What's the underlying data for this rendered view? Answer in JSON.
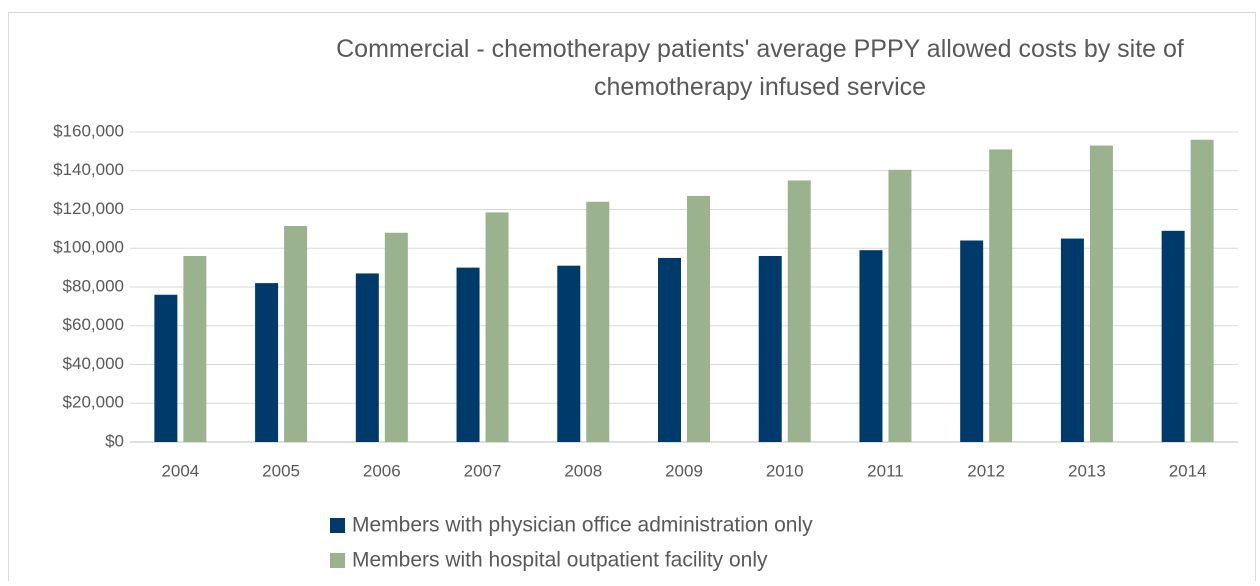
{
  "chart_data": {
    "type": "bar",
    "title": "Commercial - chemotherapy patients' average PPPY allowed costs by site of chemotherapy infused service",
    "categories": [
      "2004",
      "2005",
      "2006",
      "2007",
      "2008",
      "2009",
      "2010",
      "2011",
      "2012",
      "2013",
      "2014"
    ],
    "series": [
      {
        "name": "Members with physician office administration only",
        "color": "#003a6b",
        "values": [
          76000,
          82000,
          87000,
          90000,
          91000,
          95000,
          96000,
          99000,
          104000,
          105000,
          109000
        ]
      },
      {
        "name": "Members with hospital outpatient facility only",
        "color": "#9bb28f",
        "values": [
          96000,
          111500,
          108000,
          118500,
          124000,
          127000,
          135000,
          140500,
          151000,
          153000,
          156000
        ]
      }
    ],
    "ylim": [
      0,
      160000
    ],
    "yticks": [
      {
        "value": 0,
        "label": "$0"
      },
      {
        "value": 20000,
        "label": "$20,000"
      },
      {
        "value": 40000,
        "label": "$40,000"
      },
      {
        "value": 60000,
        "label": "$60,000"
      },
      {
        "value": 80000,
        "label": "$80,000"
      },
      {
        "value": 100000,
        "label": "$100,000"
      },
      {
        "value": 120000,
        "label": "$120,000"
      },
      {
        "value": 140000,
        "label": "$140,000"
      },
      {
        "value": 160000,
        "label": "$160,000"
      }
    ],
    "grid": true,
    "legend": "bottom"
  }
}
